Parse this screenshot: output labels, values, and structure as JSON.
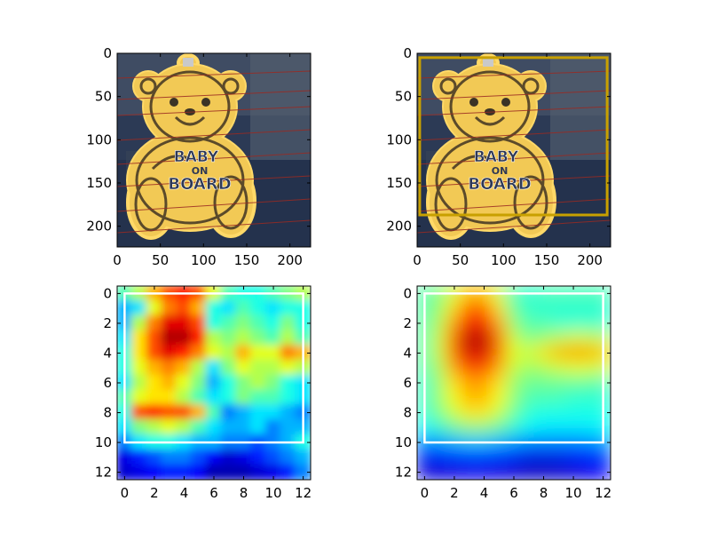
{
  "chart_data": [
    {
      "panel": "top-left",
      "type": "image",
      "content": "photo of a yellow teddy-bear 'BABY ON BOARD' sign on a car window",
      "sign_text": [
        "BABY",
        "ON",
        "BOARD"
      ],
      "extent": [
        0,
        224,
        224,
        0
      ],
      "xticks": [
        0,
        50,
        100,
        150,
        200
      ],
      "yticks": [
        0,
        50,
        100,
        150,
        200
      ],
      "bounding_box": null
    },
    {
      "panel": "top-right",
      "type": "image",
      "content": "same photo with detection box",
      "sign_text": [
        "BABY",
        "ON",
        "BOARD"
      ],
      "extent": [
        0,
        224,
        224,
        0
      ],
      "xticks": [
        0,
        50,
        100,
        150,
        200
      ],
      "yticks": [
        0,
        50,
        100,
        150,
        200
      ],
      "bounding_box": {
        "x0": 3,
        "y0": 5,
        "x1": 220,
        "y1": 187,
        "color": "#c8a000"
      }
    },
    {
      "panel": "bottom-left",
      "type": "heatmap",
      "colormap": "jet",
      "extent": [
        -0.5,
        12.5,
        12.5,
        -0.5
      ],
      "xticks": [
        0,
        2,
        4,
        6,
        8,
        10,
        12
      ],
      "yticks": [
        0,
        2,
        4,
        6,
        8,
        10,
        12
      ],
      "bounding_box": {
        "x0": 0,
        "y0": 0,
        "x1": 12,
        "y1": 10,
        "color": "#ffffff"
      },
      "values": [
        [
          0.45,
          0.55,
          0.7,
          0.8,
          0.85,
          0.8,
          0.6,
          0.45,
          0.4,
          0.4,
          0.45,
          0.5,
          0.55
        ],
        [
          0.3,
          0.35,
          0.6,
          0.75,
          0.8,
          0.7,
          0.4,
          0.35,
          0.45,
          0.4,
          0.35,
          0.4,
          0.4
        ],
        [
          0.3,
          0.55,
          0.75,
          0.9,
          0.9,
          0.8,
          0.4,
          0.45,
          0.5,
          0.45,
          0.4,
          0.5,
          0.4
        ],
        [
          0.35,
          0.65,
          0.8,
          0.95,
          0.95,
          0.85,
          0.55,
          0.5,
          0.55,
          0.5,
          0.45,
          0.55,
          0.45
        ],
        [
          0.4,
          0.65,
          0.8,
          0.9,
          0.85,
          0.75,
          0.6,
          0.55,
          0.7,
          0.6,
          0.6,
          0.75,
          0.7
        ],
        [
          0.4,
          0.6,
          0.7,
          0.75,
          0.7,
          0.55,
          0.35,
          0.5,
          0.6,
          0.55,
          0.55,
          0.6,
          0.55
        ],
        [
          0.35,
          0.55,
          0.65,
          0.7,
          0.6,
          0.5,
          0.3,
          0.4,
          0.5,
          0.55,
          0.5,
          0.4,
          0.35
        ],
        [
          0.45,
          0.6,
          0.65,
          0.65,
          0.55,
          0.45,
          0.35,
          0.4,
          0.5,
          0.45,
          0.45,
          0.4,
          0.35
        ],
        [
          0.4,
          0.8,
          0.85,
          0.8,
          0.8,
          0.7,
          0.45,
          0.25,
          0.3,
          0.35,
          0.35,
          0.3,
          0.25
        ],
        [
          0.35,
          0.5,
          0.55,
          0.6,
          0.55,
          0.45,
          0.35,
          0.3,
          0.3,
          0.35,
          0.25,
          0.3,
          0.3
        ],
        [
          0.25,
          0.35,
          0.4,
          0.4,
          0.35,
          0.3,
          0.3,
          0.25,
          0.25,
          0.2,
          0.25,
          0.3,
          0.4
        ],
        [
          0.1,
          0.15,
          0.2,
          0.25,
          0.25,
          0.2,
          0.12,
          0.08,
          0.1,
          0.15,
          0.2,
          0.25,
          0.3
        ],
        [
          0.08,
          0.1,
          0.12,
          0.15,
          0.15,
          0.12,
          0.05,
          0.05,
          0.05,
          0.08,
          0.1,
          0.15,
          0.25
        ]
      ]
    },
    {
      "panel": "bottom-right",
      "type": "heatmap",
      "colormap": "jet",
      "extent": [
        -0.5,
        12.5,
        12.5,
        -0.5
      ],
      "xticks": [
        0,
        2,
        4,
        6,
        8,
        10,
        12
      ],
      "yticks": [
        0,
        2,
        4,
        6,
        8,
        10,
        12
      ],
      "bounding_box": {
        "x0": 0,
        "y0": 0,
        "x1": 12,
        "y1": 10,
        "color": "#ffffff"
      },
      "values": [
        [
          0.45,
          0.5,
          0.58,
          0.68,
          0.68,
          0.58,
          0.45,
          0.42,
          0.45,
          0.45,
          0.45,
          0.45,
          0.45
        ],
        [
          0.45,
          0.52,
          0.65,
          0.78,
          0.78,
          0.65,
          0.48,
          0.42,
          0.42,
          0.42,
          0.42,
          0.42,
          0.42
        ],
        [
          0.45,
          0.55,
          0.72,
          0.88,
          0.88,
          0.72,
          0.52,
          0.45,
          0.45,
          0.42,
          0.42,
          0.42,
          0.42
        ],
        [
          0.45,
          0.58,
          0.78,
          0.95,
          0.95,
          0.78,
          0.58,
          0.48,
          0.52,
          0.55,
          0.58,
          0.58,
          0.55
        ],
        [
          0.45,
          0.58,
          0.78,
          0.92,
          0.92,
          0.78,
          0.6,
          0.58,
          0.65,
          0.7,
          0.72,
          0.72,
          0.68
        ],
        [
          0.45,
          0.55,
          0.72,
          0.82,
          0.82,
          0.72,
          0.58,
          0.52,
          0.55,
          0.58,
          0.6,
          0.6,
          0.58
        ],
        [
          0.42,
          0.52,
          0.65,
          0.72,
          0.72,
          0.65,
          0.52,
          0.48,
          0.48,
          0.48,
          0.48,
          0.48,
          0.45
        ],
        [
          0.42,
          0.52,
          0.62,
          0.7,
          0.7,
          0.62,
          0.52,
          0.45,
          0.45,
          0.45,
          0.42,
          0.42,
          0.42
        ],
        [
          0.42,
          0.5,
          0.58,
          0.65,
          0.65,
          0.58,
          0.48,
          0.42,
          0.4,
          0.4,
          0.4,
          0.4,
          0.4
        ],
        [
          0.38,
          0.42,
          0.48,
          0.52,
          0.52,
          0.48,
          0.42,
          0.38,
          0.36,
          0.36,
          0.36,
          0.36,
          0.38
        ],
        [
          0.25,
          0.28,
          0.3,
          0.32,
          0.32,
          0.3,
          0.28,
          0.25,
          0.25,
          0.25,
          0.25,
          0.26,
          0.28
        ],
        [
          0.12,
          0.13,
          0.14,
          0.15,
          0.15,
          0.14,
          0.12,
          0.1,
          0.1,
          0.1,
          0.12,
          0.13,
          0.15
        ],
        [
          0.08,
          0.08,
          0.09,
          0.1,
          0.1,
          0.09,
          0.08,
          0.06,
          0.06,
          0.07,
          0.08,
          0.1,
          0.12
        ]
      ]
    }
  ]
}
